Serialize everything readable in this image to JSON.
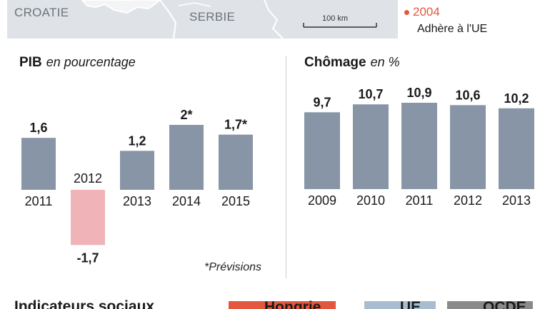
{
  "map": {
    "labels": [
      "CROATIE",
      "SERBIE"
    ],
    "scale_label": "100 km",
    "legend": {
      "year": "2004",
      "description": "Adhère à l'UE",
      "color": "#e4573f"
    }
  },
  "charts": {
    "pib": {
      "title": "PIB",
      "subtitle": "en pourcentage"
    },
    "chomage": {
      "title": "Chômage",
      "subtitle": "en %"
    }
  },
  "note": "*Prévisions",
  "chart_data": [
    {
      "type": "bar",
      "title": "PIB en pourcentage",
      "categories": [
        "2011",
        "2012",
        "2013",
        "2014",
        "2015"
      ],
      "values": [
        1.6,
        -1.7,
        1.2,
        2,
        1.7
      ],
      "data_labels": [
        "1,6",
        "-1,7",
        "1,2",
        "2*",
        "1,7*"
      ],
      "colors": {
        "positive": "#8795a6",
        "negative": "#f0b4b8"
      },
      "ylim": [
        -1.7,
        2
      ]
    },
    {
      "type": "bar",
      "title": "Chômage en %",
      "categories": [
        "2009",
        "2010",
        "2011",
        "2012",
        "2013"
      ],
      "values": [
        9.7,
        10.7,
        10.9,
        10.6,
        10.2
      ],
      "data_labels": [
        "9,7",
        "10,7",
        "10,9",
        "10,6",
        "10,2"
      ],
      "colors": {
        "bar": "#8795a6"
      },
      "ylim": [
        0,
        10.9
      ]
    }
  ],
  "bottom": {
    "title": "Indicateurs sociaux",
    "legend": [
      {
        "label": "Hongrie",
        "color": "#e4573f"
      },
      {
        "label": "UE",
        "color": "#a9bdd0"
      },
      {
        "label": "OCDE",
        "color": "#8a8a8a"
      }
    ]
  }
}
